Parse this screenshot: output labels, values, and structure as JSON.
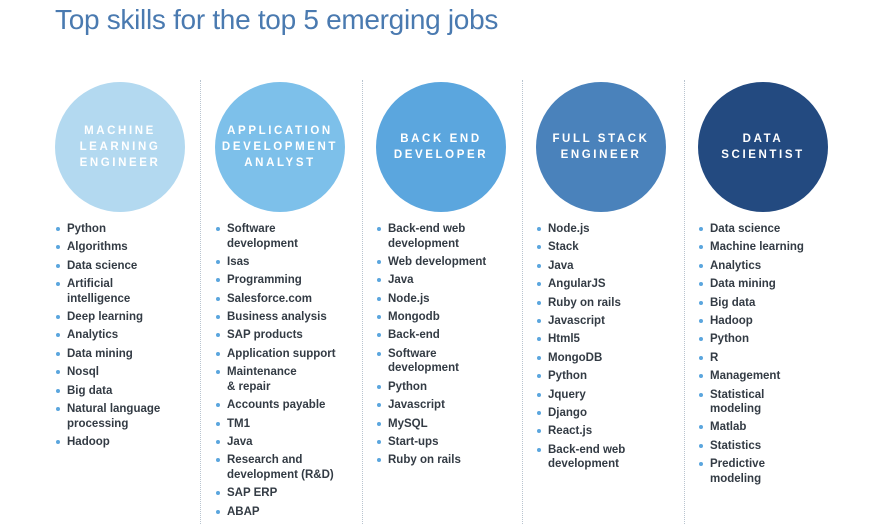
{
  "header": {
    "title": "Top skills for the top 5 emerging jobs"
  },
  "columns": [
    {
      "title": "MACHINE\nLEARNING\nENGINEER",
      "color": "#b3d9f0",
      "skills": [
        "Python",
        "Algorithms",
        "Data science",
        "Artificial\nintelligence",
        "Deep learning",
        "Analytics",
        "Data mining",
        "Nosql",
        "Big data",
        "Natural language\nprocessing",
        "Hadoop"
      ]
    },
    {
      "title": "APPLICATION\nDEVELOPMENT\nANALYST",
      "color": "#7dc0ea",
      "skills": [
        "Software\ndevelopment",
        "Isas",
        "Programming",
        "Salesforce.com",
        "Business analysis",
        "SAP products",
        "Application support",
        "Maintenance\n& repair",
        "Accounts payable",
        "TM1",
        "Java",
        "Research and\ndevelopment (R&D)",
        "SAP ERP",
        "ABAP"
      ]
    },
    {
      "title": "BACK END\nDEVELOPER",
      "color": "#5ba6de",
      "skills": [
        "Back-end web\ndevelopment",
        "Web development",
        "Java",
        "Node.js",
        "Mongodb",
        "Back-end",
        "Software\ndevelopment",
        "Python",
        "Javascript",
        "MySQL",
        "Start-ups",
        "Ruby on rails"
      ]
    },
    {
      "title": "FULL STACK\nENGINEER",
      "color": "#4a82bb",
      "skills": [
        "Node.js",
        "Stack",
        "Java",
        "AngularJS",
        "Ruby on rails",
        "Javascript",
        "Html5",
        "MongoDB",
        "Python",
        "Jquery",
        "Django",
        "React.js",
        "Back-end web\ndevelopment"
      ]
    },
    {
      "title": "DATA\nSCIENTIST",
      "color": "#234a80",
      "skills": [
        "Data science",
        "Machine learning",
        "Analytics",
        "Data mining",
        "Big data",
        "Hadoop",
        "Python",
        "R",
        "Management",
        "Statistical\nmodeling",
        "Matlab",
        "Statistics",
        "Predictive\nmodeling"
      ]
    }
  ]
}
